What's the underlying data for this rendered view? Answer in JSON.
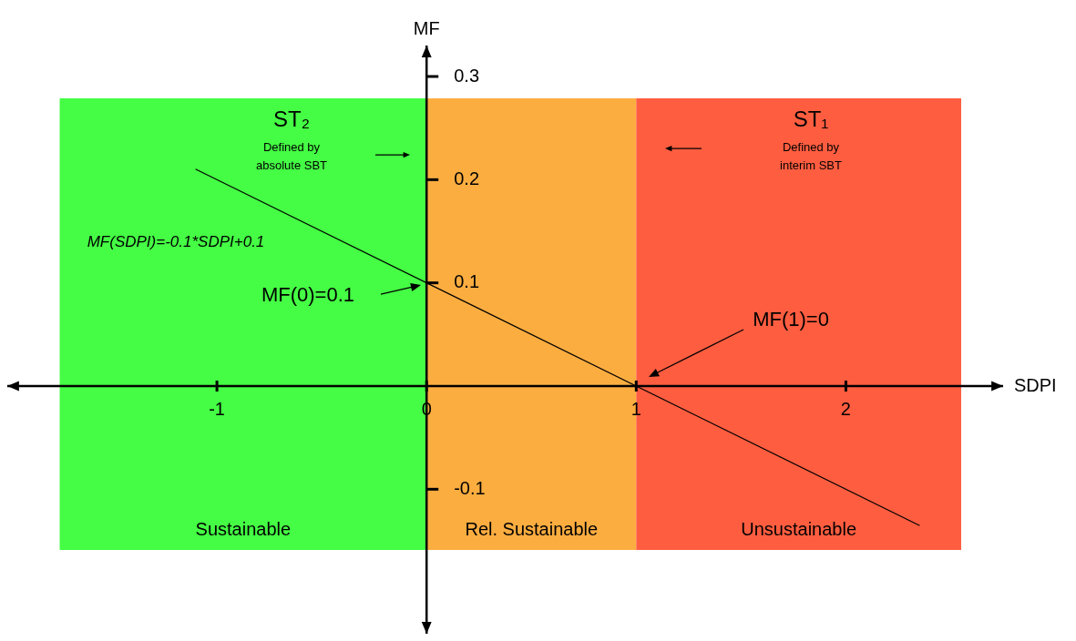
{
  "chart_data": {
    "type": "line",
    "xlabel": "SDPI",
    "ylabel": "MF",
    "series": [
      {
        "type": "line",
        "color": "#000000",
        "x": [
          -1.1,
          2.35
        ],
        "values": [
          0.21,
          -0.135
        ]
      }
    ],
    "xlim": [
      -2,
      2.75
    ],
    "ylim": [
      -0.24,
      0.33
    ],
    "xticks": [
      -1,
      0,
      1,
      2
    ],
    "yticks": [
      -0.1,
      0.1,
      0.2,
      0.3
    ],
    "bands": [
      {
        "axis": "x",
        "from": -1.75,
        "to": 0,
        "label": "Sustainable",
        "color": "#44fd44"
      },
      {
        "axis": "x",
        "from": 0,
        "to": 1,
        "label": "Rel. Sustainable",
        "color": "#fcad40"
      },
      {
        "axis": "x",
        "from": 1,
        "to": 2.55,
        "label": "Unsustainable",
        "color": "#ff5d40"
      }
    ],
    "annotations": [
      "ST₂",
      "Defined by absolute SBT",
      "ST₁",
      "Defined by interim SBT",
      "MF(SDPI)=-0.1*SDPI+0.1",
      "MF(0)=0.1",
      "MF(1)=0"
    ],
    "grid": false,
    "legend": false,
    "marker": "none",
    "line_style": "solid"
  }
}
